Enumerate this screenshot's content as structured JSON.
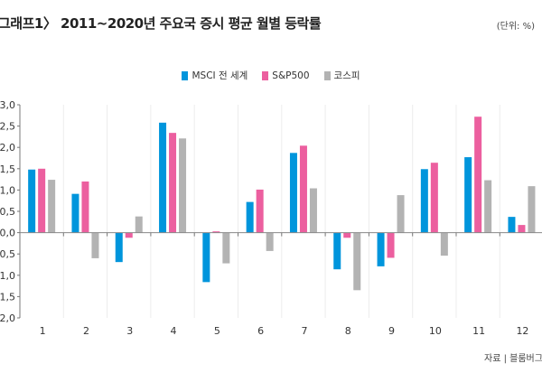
{
  "title": "그래프1〉 2011~2020년 주요국 증시 평균 월별 등락률",
  "unit": "(단위: %)",
  "source": "자료 | 블룸버그",
  "chart_data": {
    "type": "bar",
    "title": "그래프1〉 2011~2020년 주요국 증시 평균 월별 등락률",
    "xlabel": "",
    "ylabel": "",
    "ylim": [
      -2.0,
      3.0
    ],
    "yticks": [
      3.0,
      2.5,
      2.0,
      1.5,
      1.0,
      0.5,
      0.0,
      -0.5,
      -1.0,
      -1.5,
      -2.0
    ],
    "ytick_labels": [
      "3,0",
      "2,5",
      "2,0",
      "1,5",
      "1,0",
      "0,5",
      "0,0",
      "-0,5",
      "-1,0",
      "-1,5",
      "-2,0"
    ],
    "categories": [
      "1",
      "2",
      "3",
      "4",
      "5",
      "6",
      "7",
      "8",
      "9",
      "10",
      "11",
      "12"
    ],
    "legend_position": "top-center",
    "grid": "vertical separators",
    "series": [
      {
        "name": "MSCI 전 세계",
        "color": "#0095dc",
        "values": [
          1.48,
          0.91,
          -0.69,
          2.58,
          -1.16,
          0.72,
          1.87,
          -0.86,
          -0.79,
          1.49,
          1.77,
          0.37
        ]
      },
      {
        "name": "S&P500",
        "color": "#ec5f9f",
        "values": [
          1.5,
          1.2,
          -0.12,
          2.34,
          0.03,
          1.01,
          2.04,
          -0.12,
          -0.59,
          1.64,
          2.72,
          0.18
        ]
      },
      {
        "name": "코스피",
        "color": "#b3b3b3",
        "values": [
          1.24,
          -0.6,
          0.38,
          2.21,
          -0.72,
          -0.43,
          1.04,
          -1.35,
          0.88,
          -0.54,
          1.23,
          1.09
        ]
      }
    ]
  }
}
